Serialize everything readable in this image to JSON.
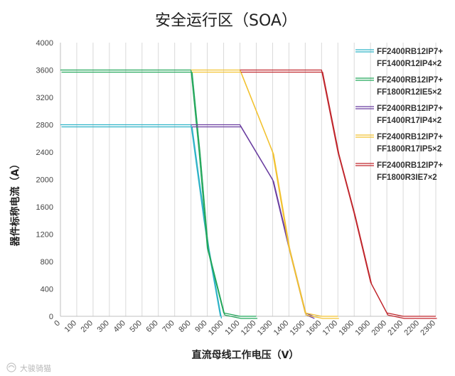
{
  "chart_data": {
    "type": "line",
    "title": "安全运行区（SOA）",
    "xlabel": "直流母线工作电压（V）",
    "ylabel": "器件标称电流（A）",
    "xlim": [
      0,
      2300
    ],
    "ylim": [
      0,
      4000
    ],
    "x_ticks": [
      0,
      100,
      200,
      300,
      400,
      500,
      600,
      700,
      800,
      900,
      1000,
      1100,
      1200,
      1300,
      1400,
      1500,
      1600,
      1700,
      1800,
      1900,
      2000,
      2100,
      2200,
      2300
    ],
    "y_ticks": [
      0,
      400,
      800,
      1200,
      1600,
      2000,
      2400,
      2800,
      3200,
      3600,
      4000
    ],
    "grid": "vertical",
    "legend_position": "right",
    "series": [
      {
        "name_line1": "FF2400RB12IP7+",
        "name_line2": "FF1400R12IP4×2",
        "color": "#2fb3c8",
        "points": [
          [
            0,
            2800
          ],
          [
            800,
            2800
          ],
          [
            880,
            1400
          ],
          [
            905,
            1000
          ],
          [
            980,
            0
          ]
        ]
      },
      {
        "name_line1": "FF2400RB12IP7+",
        "name_line2": "FF1800R12IE5×2",
        "color": "#22a65a",
        "points": [
          [
            0,
            3600
          ],
          [
            800,
            3600
          ],
          [
            850,
            2400
          ],
          [
            900,
            1000
          ],
          [
            1000,
            50
          ],
          [
            1100,
            0
          ],
          [
            1200,
            0
          ]
        ]
      },
      {
        "name_line1": "FF2400RB12IP7+",
        "name_line2": "FF1400R17IP4×2",
        "color": "#6a3ea0",
        "points": [
          [
            800,
            2800
          ],
          [
            1100,
            2800
          ],
          [
            1300,
            2000
          ],
          [
            1400,
            1000
          ],
          [
            1500,
            50
          ],
          [
            1550,
            0
          ]
        ]
      },
      {
        "name_line1": "FF2400RB12IP7+",
        "name_line2": "FF1800R17IP5×2",
        "color": "#f2c230",
        "points": [
          [
            800,
            3600
          ],
          [
            1100,
            3600
          ],
          [
            1300,
            2400
          ],
          [
            1400,
            1000
          ],
          [
            1500,
            50
          ],
          [
            1600,
            0
          ],
          [
            1700,
            0
          ]
        ]
      },
      {
        "name_line1": "FF2400RB12IP7+",
        "name_line2": "FF1800R3IE7×2",
        "color": "#c0262c",
        "points": [
          [
            1100,
            3600
          ],
          [
            1600,
            3600
          ],
          [
            1700,
            2400
          ],
          [
            1800,
            1500
          ],
          [
            1900,
            500
          ],
          [
            2000,
            50
          ],
          [
            2100,
            0
          ],
          [
            2300,
            0
          ]
        ]
      }
    ]
  },
  "watermark": "大骏骑猫"
}
